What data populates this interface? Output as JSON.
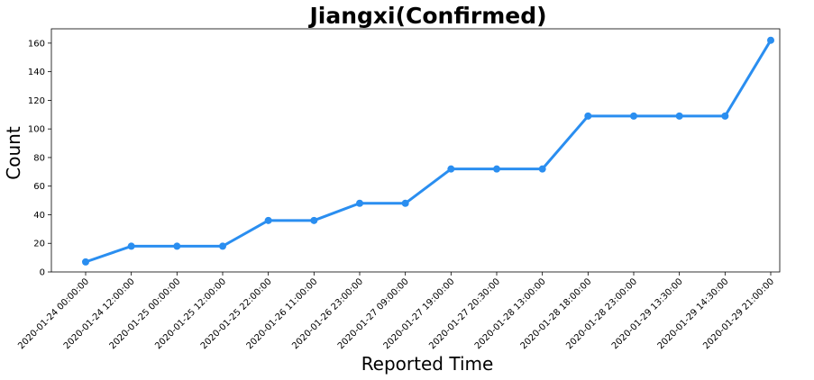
{
  "chart_data": {
    "type": "line",
    "title": "Jiangxi(Confirmed)",
    "xlabel": "Reported Time",
    "ylabel": "Count",
    "categories": [
      "2020-01-24 00:00:00",
      "2020-01-24 12:00:00",
      "2020-01-25 00:00:00",
      "2020-01-25 12:00:00",
      "2020-01-25 22:00:00",
      "2020-01-26 11:00:00",
      "2020-01-26 23:00:00",
      "2020-01-27 09:00:00",
      "2020-01-27 19:00:00",
      "2020-01-27 20:30:00",
      "2020-01-28 13:00:00",
      "2020-01-28 18:00:00",
      "2020-01-28 23:00:00",
      "2020-01-29 13:30:00",
      "2020-01-29 14:30:00",
      "2020-01-29 21:00:00"
    ],
    "series": [
      {
        "values": [
          7,
          18,
          18,
          18,
          36,
          36,
          48,
          48,
          72,
          72,
          72,
          109,
          109,
          109,
          109,
          162
        ],
        "color": "#2a8ef0"
      }
    ],
    "ylim": [
      0,
      170
    ],
    "yticks": [
      0,
      20,
      40,
      60,
      80,
      100,
      120,
      140,
      160
    ],
    "grid": false,
    "legend": "none"
  }
}
